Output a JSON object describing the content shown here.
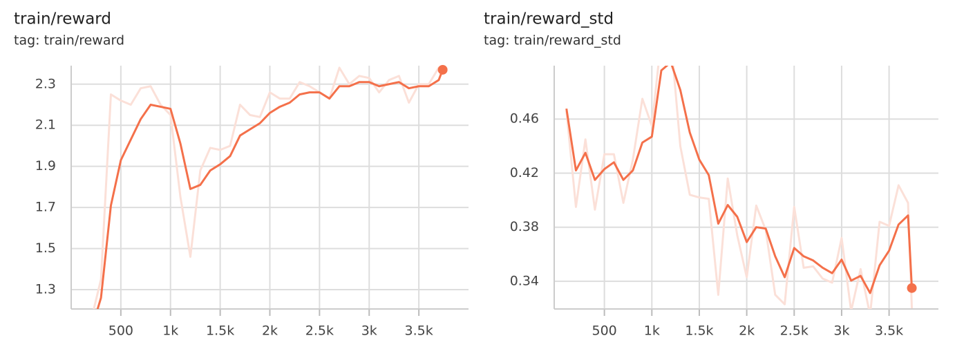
{
  "chart_data": [
    {
      "type": "line",
      "title": "train/reward",
      "subtitle": "tag: train/reward",
      "x": [
        200,
        300,
        400,
        500,
        600,
        700,
        800,
        900,
        1000,
        1100,
        1200,
        1300,
        1400,
        1500,
        1600,
        1700,
        1800,
        1900,
        2000,
        2100,
        2200,
        2300,
        2400,
        2500,
        2600,
        2700,
        2800,
        2900,
        3000,
        3100,
        3200,
        3300,
        3400,
        3500,
        3600,
        3700,
        3740
      ],
      "series": [
        {
          "color": "#fbe0d8",
          "values": [
            1.15,
            1.35,
            2.25,
            2.22,
            2.2,
            2.28,
            2.29,
            2.2,
            2.15,
            1.75,
            1.46,
            1.88,
            1.99,
            1.98,
            2.0,
            2.2,
            2.15,
            2.14,
            2.26,
            2.23,
            2.23,
            2.31,
            2.29,
            2.26,
            2.23,
            2.38,
            2.3,
            2.34,
            2.33,
            2.26,
            2.32,
            2.34,
            2.21,
            2.3,
            2.3,
            2.38,
            2.37
          ]
        },
        {
          "color": "#f4704a",
          "values": [
            1.1,
            1.26,
            1.71,
            1.93,
            2.03,
            2.13,
            2.2,
            2.19,
            2.18,
            2.01,
            1.79,
            1.81,
            1.88,
            1.91,
            1.95,
            2.05,
            2.08,
            2.11,
            2.16,
            2.19,
            2.21,
            2.25,
            2.26,
            2.26,
            2.23,
            2.29,
            2.29,
            2.31,
            2.31,
            2.29,
            2.3,
            2.31,
            2.28,
            2.29,
            2.29,
            2.32,
            2.37
          ]
        }
      ],
      "xlim": [
        0,
        4000
      ],
      "xticks": [
        500,
        {
          "value": 1000,
          "label": "1k"
        },
        {
          "value": 1500,
          "label": "1.5k"
        },
        {
          "value": 2000,
          "label": "2k"
        },
        {
          "value": 2500,
          "label": "2.5k"
        },
        {
          "value": 3000,
          "label": "3k"
        },
        {
          "value": 3500,
          "label": "3.5k"
        }
      ],
      "ylim": [
        1.206,
        2.39
      ],
      "yticks": [
        1.3,
        1.5,
        1.7,
        1.9,
        2.1,
        2.3
      ],
      "grid": true
    },
    {
      "type": "line",
      "title": "train/reward_std",
      "subtitle": "tag: train/reward_std",
      "x": [
        100,
        200,
        300,
        400,
        500,
        600,
        700,
        800,
        900,
        1000,
        1100,
        1200,
        1300,
        1400,
        1500,
        1600,
        1700,
        1800,
        1900,
        2000,
        2100,
        2200,
        2300,
        2400,
        2500,
        2600,
        2700,
        2800,
        2900,
        3000,
        3100,
        3200,
        3300,
        3400,
        3500,
        3600,
        3700,
        3740
      ],
      "series": [
        {
          "color": "#fbe0d8",
          "values": [
            0.466,
            0.395,
            0.445,
            0.393,
            0.434,
            0.434,
            0.398,
            0.43,
            0.475,
            0.455,
            0.52,
            0.52,
            0.44,
            0.404,
            0.402,
            0.401,
            0.33,
            0.416,
            0.374,
            0.343,
            0.396,
            0.378,
            0.33,
            0.323,
            0.395,
            0.35,
            0.351,
            0.342,
            0.339,
            0.372,
            0.318,
            0.349,
            0.315,
            0.384,
            0.381,
            0.411,
            0.398,
            0.32
          ]
        },
        {
          "color": "#f4704a",
          "values": [
            0.4677,
            0.422,
            0.435,
            0.415,
            0.423,
            0.428,
            0.415,
            0.422,
            0.4426,
            0.447,
            0.496,
            0.502,
            0.4815,
            0.45,
            0.43,
            0.4185,
            0.3826,
            0.3964,
            0.3877,
            0.369,
            0.38,
            0.379,
            0.3585,
            0.343,
            0.3646,
            0.3585,
            0.3554,
            0.35,
            0.346,
            0.356,
            0.3405,
            0.344,
            0.3313,
            0.3518,
            0.3626,
            0.382,
            0.3887,
            0.335
          ]
        }
      ],
      "xlim": [
        -29,
        4020
      ],
      "xticks": [
        500,
        {
          "value": 1000,
          "label": "1k"
        },
        {
          "value": 1500,
          "label": "1.5k"
        },
        {
          "value": 2000,
          "label": "2k"
        },
        {
          "value": 2500,
          "label": "2.5k"
        },
        {
          "value": 3000,
          "label": "3k"
        },
        {
          "value": 3500,
          "label": "3.5k"
        }
      ],
      "ylim": [
        0.3195,
        0.4995
      ],
      "yticks": [
        0.34,
        0.38,
        0.42,
        0.46
      ],
      "grid": true
    }
  ]
}
